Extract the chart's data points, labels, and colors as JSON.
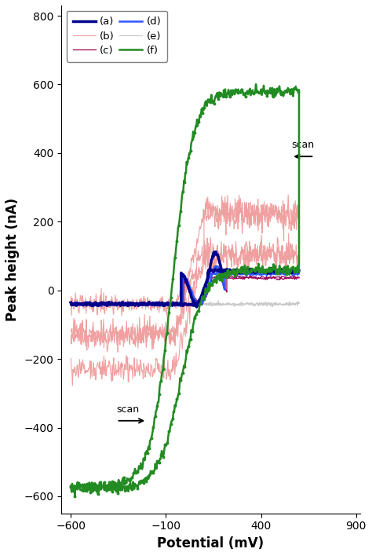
{
  "title": "",
  "xlabel": "Potential (mV)",
  "ylabel": "Peak height (nA)",
  "xlim": [
    -650,
    920
  ],
  "ylim": [
    -650,
    830
  ],
  "xticks": [
    -600,
    -100,
    400,
    900
  ],
  "yticks": [
    -600,
    -400,
    -200,
    0,
    200,
    400,
    600,
    800
  ],
  "colors": {
    "a": "#00008B",
    "b": "#F0A0A0",
    "c": "#990055",
    "d": "#3355FF",
    "e": "#C8C8C8",
    "f": "#228B22"
  },
  "linewidths": {
    "a": 2.5,
    "b": 0.8,
    "c": 0.9,
    "d": 1.8,
    "e": 0.8,
    "f": 1.8
  },
  "figsize": [
    4.74,
    7.08
  ],
  "dpi": 100
}
